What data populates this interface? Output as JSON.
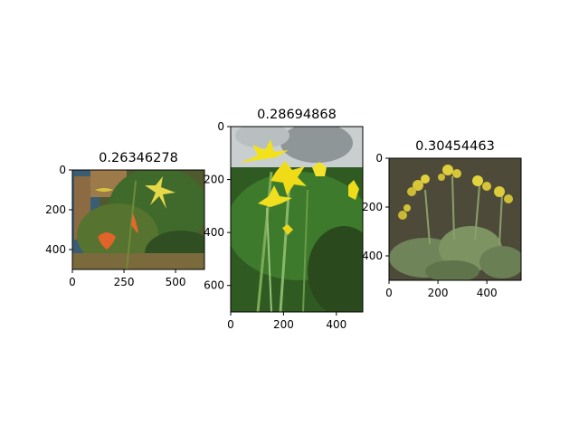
{
  "chart_data": [
    {
      "type": "image",
      "title": "0.26346278",
      "content": "photo of lilies: orange spotted lily with a yellow lily in foliage",
      "image_size": [
        640,
        500
      ],
      "xlim": [
        0,
        640
      ],
      "ylim": [
        500,
        0
      ],
      "xticks": [
        0,
        250,
        500
      ],
      "yticks": [
        0,
        200,
        400
      ],
      "xtick_labels": [
        "0",
        "250",
        "500"
      ],
      "ytick_labels": [
        "0",
        "200",
        "400"
      ]
    },
    {
      "type": "image",
      "title": "0.28694868",
      "content": "photo of yellow star-shaped flowers with tall green leaves",
      "image_size": [
        500,
        700
      ],
      "xlim": [
        0,
        500
      ],
      "ylim": [
        700,
        0
      ],
      "xticks": [
        0,
        200,
        400
      ],
      "yticks": [
        0,
        200,
        400,
        600
      ],
      "xtick_labels": [
        "0",
        "200",
        "400"
      ],
      "ytick_labels": [
        "0",
        "200",
        "400",
        "600"
      ]
    },
    {
      "type": "image",
      "title": "0.30454463",
      "content": "photo of cowslip primulas with clustered yellow flowers over crinkled leaves",
      "image_size": [
        540,
        500
      ],
      "xlim": [
        0,
        540
      ],
      "ylim": [
        500,
        0
      ],
      "xticks": [
        0,
        200,
        400
      ],
      "yticks": [
        0,
        200,
        400
      ],
      "xtick_labels": [
        "0",
        "200",
        "400"
      ],
      "ytick_labels": [
        "0",
        "200",
        "400"
      ]
    }
  ]
}
